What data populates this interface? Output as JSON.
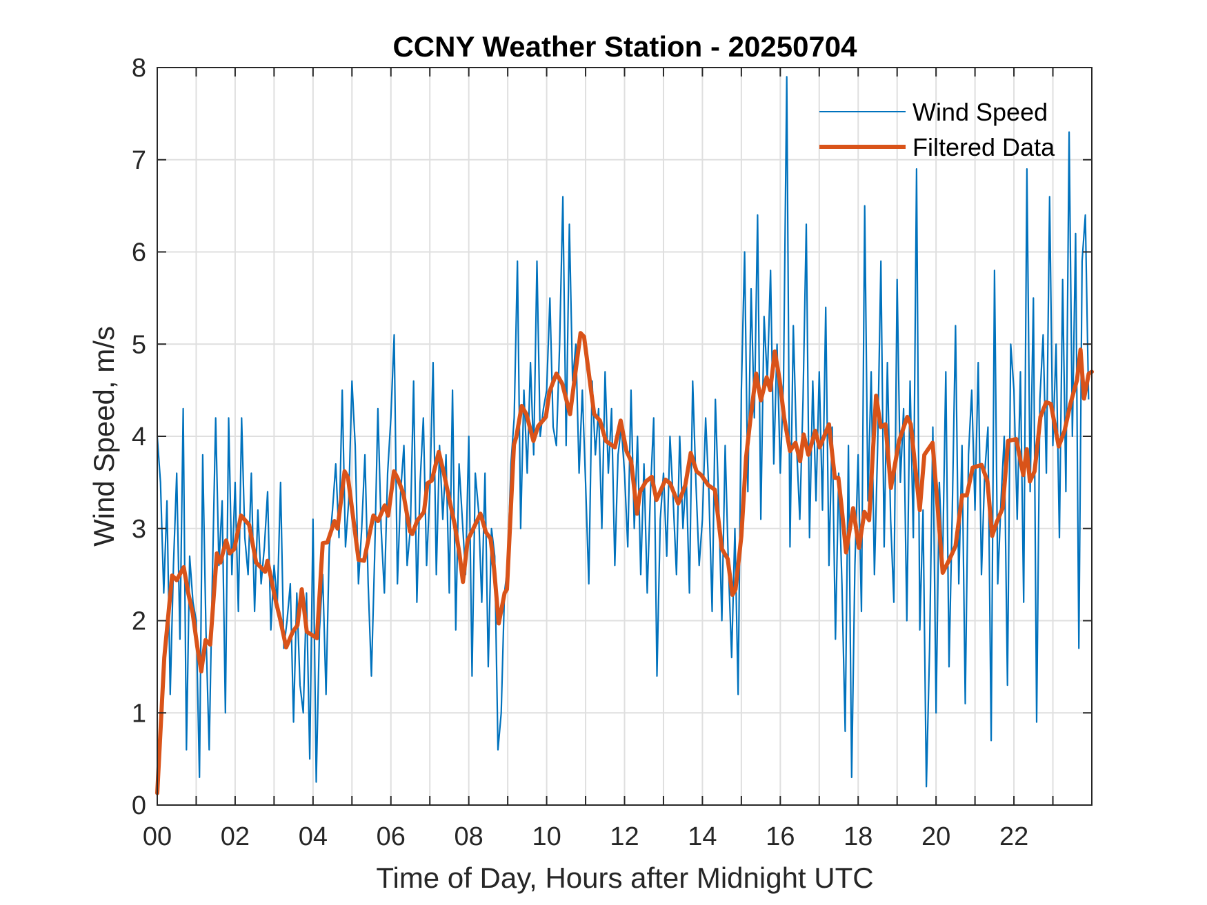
{
  "chart_data": {
    "type": "line",
    "title": "CCNY Weather Station - 20250704",
    "xlabel": "Time of Day, Hours after Midnight UTC",
    "ylabel": "Wind Speed, m/s",
    "xlim": [
      0,
      24
    ],
    "ylim": [
      0,
      8
    ],
    "grid": true,
    "legend_position": "top-right",
    "x_ticks": [
      0,
      1,
      2,
      3,
      4,
      5,
      6,
      7,
      8,
      9,
      10,
      11,
      12,
      13,
      14,
      15,
      16,
      17,
      18,
      19,
      20,
      21,
      22,
      23
    ],
    "x_tick_labels": [
      {
        "value": 0,
        "label": "00"
      },
      {
        "value": 2,
        "label": "02"
      },
      {
        "value": 4,
        "label": "04"
      },
      {
        "value": 6,
        "label": "06"
      },
      {
        "value": 8,
        "label": "08"
      },
      {
        "value": 10,
        "label": "10"
      },
      {
        "value": 12,
        "label": "12"
      },
      {
        "value": 14,
        "label": "14"
      },
      {
        "value": 16,
        "label": "16"
      },
      {
        "value": 18,
        "label": "18"
      },
      {
        "value": 20,
        "label": "20"
      },
      {
        "value": 22,
        "label": "22"
      }
    ],
    "y_ticks": [
      0,
      1,
      2,
      3,
      4,
      5,
      6,
      7,
      8
    ],
    "y_tick_labels": [
      "0",
      "1",
      "2",
      "3",
      "4",
      "5",
      "6",
      "7",
      "8"
    ],
    "series": [
      {
        "name": "Wind Speed",
        "color": "#0072BD",
        "x_step_hours": 0.0833333,
        "x_start": 0,
        "values": [
          4.0,
          3.5,
          2.3,
          3.3,
          1.2,
          2.6,
          3.6,
          1.8,
          4.3,
          0.6,
          2.7,
          2.2,
          2.0,
          0.3,
          3.8,
          1.9,
          0.6,
          2.5,
          4.2,
          2.6,
          3.3,
          1.0,
          4.2,
          2.5,
          3.5,
          2.1,
          4.2,
          2.9,
          2.5,
          3.6,
          2.1,
          3.2,
          2.4,
          2.8,
          3.4,
          1.9,
          2.6,
          2.2,
          3.5,
          1.7,
          2.0,
          2.4,
          0.9,
          2.3,
          1.3,
          1.0,
          2.3,
          0.5,
          3.1,
          0.25,
          1.9,
          2.5,
          1.2,
          2.8,
          3.2,
          3.7,
          2.9,
          4.5,
          2.8,
          3.3,
          4.6,
          3.9,
          2.4,
          3.0,
          3.8,
          2.4,
          1.4,
          2.7,
          4.3,
          3.0,
          2.3,
          3.6,
          4.2,
          5.1,
          2.4,
          3.4,
          3.9,
          2.6,
          3.0,
          4.6,
          2.2,
          3.5,
          4.2,
          2.6,
          3.4,
          4.8,
          2.5,
          3.9,
          3.1,
          3.8,
          2.3,
          4.5,
          1.9,
          3.7,
          3.1,
          2.5,
          4.0,
          1.4,
          3.6,
          3.2,
          2.2,
          3.6,
          1.5,
          3.0,
          2.7,
          0.6,
          1.0,
          2.3,
          2.6,
          3.7,
          4.2,
          5.9,
          3.0,
          4.5,
          3.6,
          4.8,
          3.8,
          5.9,
          4.0,
          4.3,
          4.5,
          5.5,
          4.1,
          3.9,
          5.0,
          6.6,
          3.9,
          6.3,
          4.6,
          5.0,
          3.6,
          4.5,
          3.5,
          2.4,
          4.6,
          3.8,
          4.3,
          3.0,
          4.7,
          3.6,
          4.3,
          2.6,
          3.8,
          4.1,
          3.6,
          2.8,
          4.5,
          3.0,
          4.0,
          2.5,
          3.7,
          2.3,
          3.4,
          4.2,
          1.4,
          3.1,
          3.6,
          2.7,
          4.0,
          3.3,
          2.5,
          4.0,
          3.0,
          3.6,
          2.3,
          4.6,
          3.5,
          2.6,
          3.1,
          4.2,
          3.4,
          2.1,
          4.4,
          3.3,
          2.0,
          3.9,
          2.6,
          1.6,
          3.0,
          1.2,
          4.5,
          6.0,
          3.4,
          5.6,
          4.2,
          6.4,
          3.1,
          5.3,
          4.6,
          5.8,
          3.7,
          5.0,
          3.6,
          4.6,
          7.9,
          2.8,
          5.2,
          3.9,
          3.1,
          4.4,
          6.3,
          2.9,
          4.6,
          3.3,
          4.7,
          3.2,
          5.4,
          2.6,
          4.1,
          1.8,
          3.6,
          2.4,
          0.8,
          3.9,
          0.3,
          2.6,
          3.8,
          2.1,
          6.5,
          3.3,
          4.7,
          2.5,
          3.9,
          5.9,
          2.8,
          4.8,
          3.1,
          2.2,
          5.7,
          3.5,
          4.3,
          2.0,
          4.6,
          2.9,
          6.9,
          1.9,
          3.2,
          0.2,
          1.7,
          4.1,
          1.0,
          3.5,
          2.6,
          4.7,
          1.5,
          3.2,
          5.2,
          2.4,
          3.9,
          1.1,
          3.8,
          4.5,
          3.2,
          4.8,
          2.5,
          3.6,
          4.1,
          0.7,
          5.8,
          2.4,
          3.3,
          4.0,
          1.3,
          5.0,
          4.5,
          3.1,
          4.7,
          2.2,
          6.9,
          3.4,
          5.5,
          0.9,
          4.4,
          5.1,
          3.6,
          6.6,
          3.9,
          5.0,
          2.9,
          5.7,
          3.4,
          7.3,
          4.0,
          6.2,
          1.7,
          5.9,
          6.4,
          4.4
        ]
      },
      {
        "name": "Filtered Data",
        "color": "#D95319",
        "points": [
          [
            0.0,
            0.13
          ],
          [
            0.18,
            1.6
          ],
          [
            0.38,
            2.49
          ],
          [
            0.5,
            2.44
          ],
          [
            0.68,
            2.58
          ],
          [
            0.8,
            2.29
          ],
          [
            0.91,
            2.08
          ],
          [
            1.03,
            1.71
          ],
          [
            1.13,
            1.45
          ],
          [
            1.24,
            1.79
          ],
          [
            1.36,
            1.74
          ],
          [
            1.53,
            2.73
          ],
          [
            1.62,
            2.63
          ],
          [
            1.77,
            2.87
          ],
          [
            1.86,
            2.73
          ],
          [
            1.98,
            2.78
          ],
          [
            2.15,
            3.14
          ],
          [
            2.36,
            3.04
          ],
          [
            2.54,
            2.63
          ],
          [
            2.77,
            2.53
          ],
          [
            2.83,
            2.65
          ],
          [
            3.04,
            2.22
          ],
          [
            3.16,
            2.01
          ],
          [
            3.31,
            1.71
          ],
          [
            3.48,
            1.88
          ],
          [
            3.6,
            1.95
          ],
          [
            3.71,
            2.34
          ],
          [
            3.84,
            1.88
          ],
          [
            4.1,
            1.81
          ],
          [
            4.25,
            2.84
          ],
          [
            4.37,
            2.85
          ],
          [
            4.55,
            3.08
          ],
          [
            4.63,
            3.0
          ],
          [
            4.81,
            3.62
          ],
          [
            4.9,
            3.55
          ],
          [
            5.17,
            2.66
          ],
          [
            5.31,
            2.65
          ],
          [
            5.55,
            3.14
          ],
          [
            5.67,
            3.08
          ],
          [
            5.84,
            3.25
          ],
          [
            5.93,
            3.14
          ],
          [
            6.08,
            3.62
          ],
          [
            6.17,
            3.55
          ],
          [
            6.32,
            3.38
          ],
          [
            6.49,
            2.97
          ],
          [
            6.55,
            2.94
          ],
          [
            6.67,
            3.08
          ],
          [
            6.85,
            3.18
          ],
          [
            6.94,
            3.49
          ],
          [
            7.05,
            3.52
          ],
          [
            7.23,
            3.83
          ],
          [
            7.35,
            3.62
          ],
          [
            7.5,
            3.32
          ],
          [
            7.64,
            3.04
          ],
          [
            7.76,
            2.73
          ],
          [
            7.85,
            2.42
          ],
          [
            7.97,
            2.87
          ],
          [
            8.3,
            3.16
          ],
          [
            8.44,
            2.96
          ],
          [
            8.56,
            2.89
          ],
          [
            8.65,
            2.56
          ],
          [
            8.77,
            1.97
          ],
          [
            8.92,
            2.3
          ],
          [
            8.98,
            2.34
          ],
          [
            9.16,
            3.91
          ],
          [
            9.22,
            3.99
          ],
          [
            9.36,
            4.33
          ],
          [
            9.48,
            4.24
          ],
          [
            9.66,
            3.95
          ],
          [
            9.78,
            4.11
          ],
          [
            9.98,
            4.21
          ],
          [
            10.07,
            4.48
          ],
          [
            10.25,
            4.68
          ],
          [
            10.4,
            4.57
          ],
          [
            10.6,
            4.24
          ],
          [
            10.87,
            5.12
          ],
          [
            10.96,
            5.08
          ],
          [
            11.14,
            4.5
          ],
          [
            11.22,
            4.24
          ],
          [
            11.37,
            4.17
          ],
          [
            11.52,
            3.95
          ],
          [
            11.75,
            3.88
          ],
          [
            11.9,
            4.17
          ],
          [
            12.05,
            3.84
          ],
          [
            12.17,
            3.73
          ],
          [
            12.32,
            3.16
          ],
          [
            12.4,
            3.4
          ],
          [
            12.55,
            3.51
          ],
          [
            12.7,
            3.56
          ],
          [
            12.82,
            3.31
          ],
          [
            13.05,
            3.53
          ],
          [
            13.17,
            3.49
          ],
          [
            13.38,
            3.27
          ],
          [
            13.56,
            3.47
          ],
          [
            13.7,
            3.82
          ],
          [
            13.85,
            3.62
          ],
          [
            13.97,
            3.58
          ],
          [
            14.15,
            3.47
          ],
          [
            14.32,
            3.42
          ],
          [
            14.5,
            2.78
          ],
          [
            14.65,
            2.67
          ],
          [
            14.77,
            2.28
          ],
          [
            14.85,
            2.34
          ],
          [
            15.0,
            2.92
          ],
          [
            15.12,
            3.77
          ],
          [
            15.24,
            4.21
          ],
          [
            15.38,
            4.68
          ],
          [
            15.5,
            4.39
          ],
          [
            15.65,
            4.64
          ],
          [
            15.74,
            4.5
          ],
          [
            15.86,
            4.92
          ],
          [
            15.98,
            4.62
          ],
          [
            16.1,
            4.2
          ],
          [
            16.25,
            3.84
          ],
          [
            16.39,
            3.93
          ],
          [
            16.51,
            3.73
          ],
          [
            16.6,
            4.02
          ],
          [
            16.72,
            3.8
          ],
          [
            16.9,
            4.06
          ],
          [
            17.01,
            3.88
          ],
          [
            17.25,
            4.13
          ],
          [
            17.4,
            3.55
          ],
          [
            17.49,
            3.55
          ],
          [
            17.57,
            3.25
          ],
          [
            17.69,
            2.74
          ],
          [
            17.87,
            3.22
          ],
          [
            18.02,
            2.79
          ],
          [
            18.16,
            3.18
          ],
          [
            18.28,
            3.09
          ],
          [
            18.46,
            4.44
          ],
          [
            18.58,
            4.1
          ],
          [
            18.7,
            4.13
          ],
          [
            18.84,
            3.44
          ],
          [
            19.05,
            3.95
          ],
          [
            19.26,
            4.21
          ],
          [
            19.35,
            4.13
          ],
          [
            19.58,
            3.2
          ],
          [
            19.7,
            3.8
          ],
          [
            19.91,
            3.93
          ],
          [
            20.05,
            3.18
          ],
          [
            20.17,
            2.52
          ],
          [
            20.35,
            2.67
          ],
          [
            20.5,
            2.81
          ],
          [
            20.67,
            3.36
          ],
          [
            20.79,
            3.36
          ],
          [
            20.94,
            3.66
          ],
          [
            21.17,
            3.69
          ],
          [
            21.32,
            3.51
          ],
          [
            21.44,
            2.92
          ],
          [
            21.56,
            3.07
          ],
          [
            21.71,
            3.22
          ],
          [
            21.85,
            3.95
          ],
          [
            22.06,
            3.97
          ],
          [
            22.24,
            3.58
          ],
          [
            22.33,
            3.86
          ],
          [
            22.41,
            3.51
          ],
          [
            22.53,
            3.62
          ],
          [
            22.68,
            4.21
          ],
          [
            22.83,
            4.37
          ],
          [
            22.95,
            4.35
          ],
          [
            23.15,
            3.89
          ],
          [
            23.3,
            4.06
          ],
          [
            23.45,
            4.35
          ],
          [
            23.62,
            4.61
          ],
          [
            23.71,
            4.94
          ],
          [
            23.8,
            4.41
          ],
          [
            23.92,
            4.68
          ],
          [
            24.0,
            4.7
          ]
        ]
      }
    ]
  }
}
